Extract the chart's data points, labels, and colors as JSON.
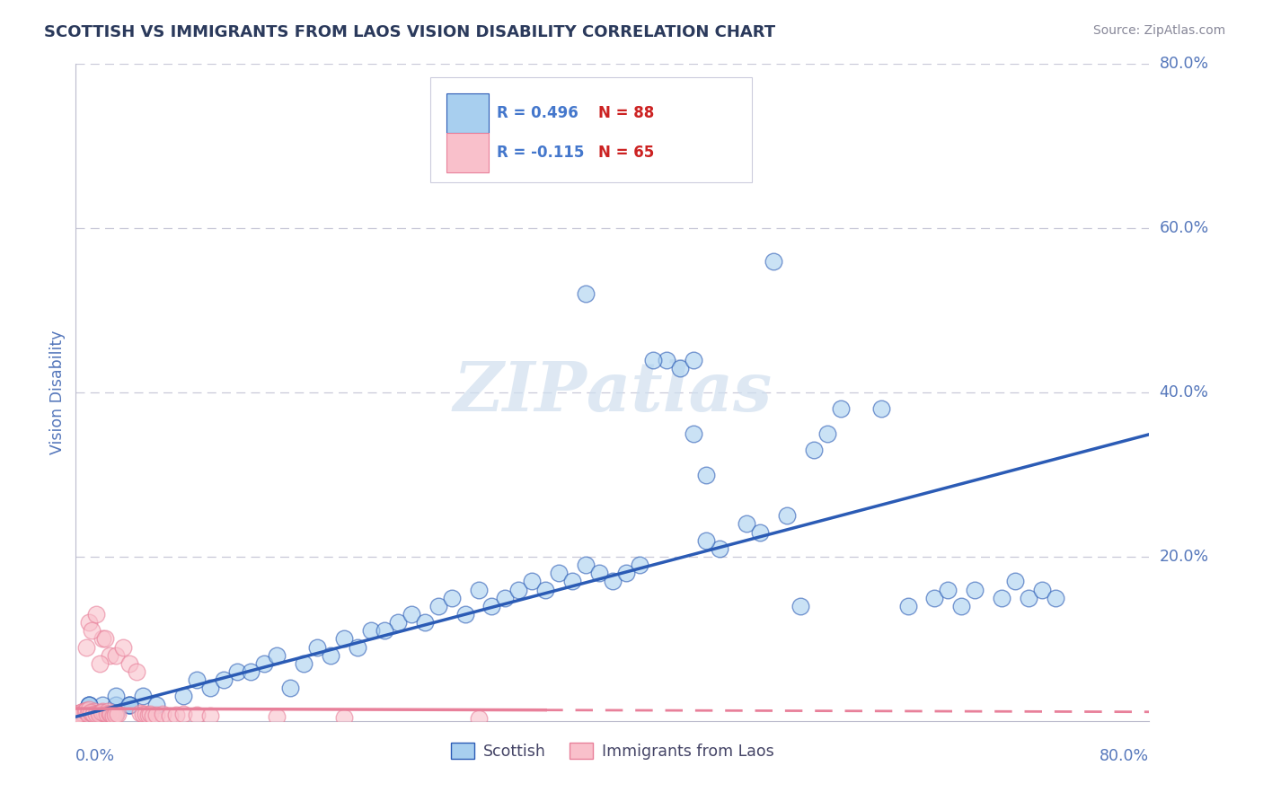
{
  "title": "SCOTTISH VS IMMIGRANTS FROM LAOS VISION DISABILITY CORRELATION CHART",
  "source": "Source: ZipAtlas.com",
  "ylabel": "Vision Disability",
  "xlim": [
    0.0,
    0.8
  ],
  "ylim": [
    0.0,
    0.8
  ],
  "scottish_R": 0.496,
  "scottish_N": 88,
  "laos_R": -0.115,
  "laos_N": 65,
  "scottish_color": "#A8CFEF",
  "laos_color": "#F9C0CB",
  "scottish_line_color": "#2B5BB5",
  "laos_line_color": "#E8809A",
  "background_color": "#FFFFFF",
  "grid_color": "#C8C8D8",
  "title_color": "#2B3A5C",
  "axis_label_color": "#5577BB",
  "tick_label_color": "#5577BB",
  "legend_R_color": "#4477CC",
  "legend_N_color": "#CC2222",
  "watermark_color": "#D0DFEF",
  "figsize": [
    14.06,
    8.92
  ],
  "dpi": 100,
  "sc_x": [
    0.02,
    0.01,
    0.01,
    0.03,
    0.02,
    0.01,
    0.04,
    0.01,
    0.02,
    0.01,
    0.05,
    0.02,
    0.03,
    0.02,
    0.01,
    0.04,
    0.02,
    0.01,
    0.03,
    0.01,
    0.06,
    0.03,
    0.02,
    0.04,
    0.01,
    0.16,
    0.08,
    0.09,
    0.1,
    0.12,
    0.14,
    0.11,
    0.13,
    0.15,
    0.18,
    0.2,
    0.17,
    0.22,
    0.21,
    0.19,
    0.24,
    0.23,
    0.25,
    0.27,
    0.26,
    0.28,
    0.3,
    0.29,
    0.31,
    0.32,
    0.33,
    0.34,
    0.35,
    0.36,
    0.37,
    0.38,
    0.39,
    0.4,
    0.41,
    0.42,
    0.38,
    0.44,
    0.43,
    0.45,
    0.46,
    0.47,
    0.46,
    0.48,
    0.47,
    0.5,
    0.51,
    0.53,
    0.52,
    0.55,
    0.54,
    0.57,
    0.56,
    0.6,
    0.62,
    0.64,
    0.65,
    0.66,
    0.67,
    0.69,
    0.7,
    0.71,
    0.72,
    0.73
  ],
  "sc_y": [
    0.01,
    0.02,
    0.01,
    0.01,
    0.02,
    0.01,
    0.02,
    0.01,
    0.01,
    0.02,
    0.03,
    0.01,
    0.02,
    0.01,
    0.01,
    0.02,
    0.01,
    0.02,
    0.01,
    0.01,
    0.02,
    0.03,
    0.01,
    0.02,
    0.01,
    0.04,
    0.03,
    0.05,
    0.04,
    0.06,
    0.07,
    0.05,
    0.06,
    0.08,
    0.09,
    0.1,
    0.07,
    0.11,
    0.09,
    0.08,
    0.12,
    0.11,
    0.13,
    0.14,
    0.12,
    0.15,
    0.16,
    0.13,
    0.14,
    0.15,
    0.16,
    0.17,
    0.16,
    0.18,
    0.17,
    0.19,
    0.18,
    0.17,
    0.18,
    0.19,
    0.52,
    0.44,
    0.44,
    0.43,
    0.44,
    0.3,
    0.35,
    0.21,
    0.22,
    0.24,
    0.23,
    0.25,
    0.56,
    0.33,
    0.14,
    0.38,
    0.35,
    0.38,
    0.14,
    0.15,
    0.16,
    0.14,
    0.16,
    0.15,
    0.17,
    0.15,
    0.16,
    0.15
  ],
  "la_x": [
    0.001,
    0.002,
    0.001,
    0.003,
    0.002,
    0.001,
    0.004,
    0.001,
    0.002,
    0.001,
    0.005,
    0.002,
    0.003,
    0.002,
    0.001,
    0.004,
    0.002,
    0.001,
    0.003,
    0.001,
    0.006,
    0.003,
    0.002,
    0.004,
    0.001,
    0.007,
    0.008,
    0.009,
    0.01,
    0.012,
    0.014,
    0.011,
    0.013,
    0.015,
    0.018,
    0.02,
    0.017,
    0.022,
    0.021,
    0.019,
    0.024,
    0.023,
    0.025,
    0.027,
    0.026,
    0.028,
    0.03,
    0.029,
    0.031,
    0.048,
    0.05,
    0.052,
    0.054,
    0.055,
    0.057,
    0.06,
    0.065,
    0.07,
    0.075,
    0.08,
    0.09,
    0.1,
    0.15,
    0.2,
    0.3
  ],
  "la_y": [
    0.005,
    0.008,
    0.004,
    0.006,
    0.009,
    0.007,
    0.01,
    0.005,
    0.008,
    0.006,
    0.009,
    0.007,
    0.01,
    0.005,
    0.008,
    0.009,
    0.006,
    0.007,
    0.008,
    0.005,
    0.012,
    0.01,
    0.008,
    0.011,
    0.007,
    0.012,
    0.013,
    0.009,
    0.014,
    0.01,
    0.012,
    0.011,
    0.008,
    0.009,
    0.01,
    0.012,
    0.008,
    0.009,
    0.01,
    0.011,
    0.012,
    0.008,
    0.009,
    0.007,
    0.008,
    0.006,
    0.009,
    0.007,
    0.008,
    0.01,
    0.008,
    0.009,
    0.007,
    0.008,
    0.006,
    0.007,
    0.008,
    0.006,
    0.007,
    0.008,
    0.007,
    0.006,
    0.005,
    0.004,
    0.003
  ]
}
